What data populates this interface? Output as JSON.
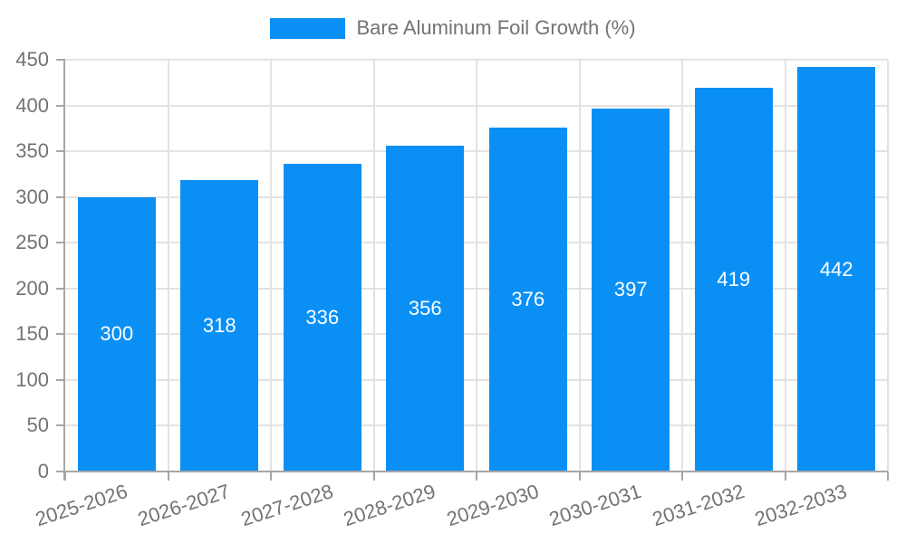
{
  "legend": {
    "label": "Bare Aluminum Foil Growth (%)"
  },
  "chart_data": {
    "type": "bar",
    "title": "",
    "categories": [
      "2025-2026",
      "2026-2027",
      "2027-2028",
      "2028-2029",
      "2029-2030",
      "2030-2031",
      "2031-2032",
      "2032-2033"
    ],
    "series": [
      {
        "name": "Bare Aluminum Foil Growth (%)",
        "values": [
          300,
          318,
          336,
          356,
          376,
          397,
          419,
          442
        ]
      }
    ],
    "xlabel": "",
    "ylabel": "",
    "ylim": [
      0,
      450
    ],
    "yticks": [
      0,
      50,
      100,
      150,
      200,
      250,
      300,
      350,
      400,
      450
    ],
    "grid": true,
    "legend_position": "top-center",
    "value_labels_position": "inside-center",
    "x_label_rotation_deg": -18,
    "colors": {
      "bar": "#0a90f5",
      "axis": "#a6a6a6",
      "grid": "#e3e3e3",
      "text": "#737373",
      "value_label": "#ffffff",
      "background": "#ffffff"
    }
  }
}
